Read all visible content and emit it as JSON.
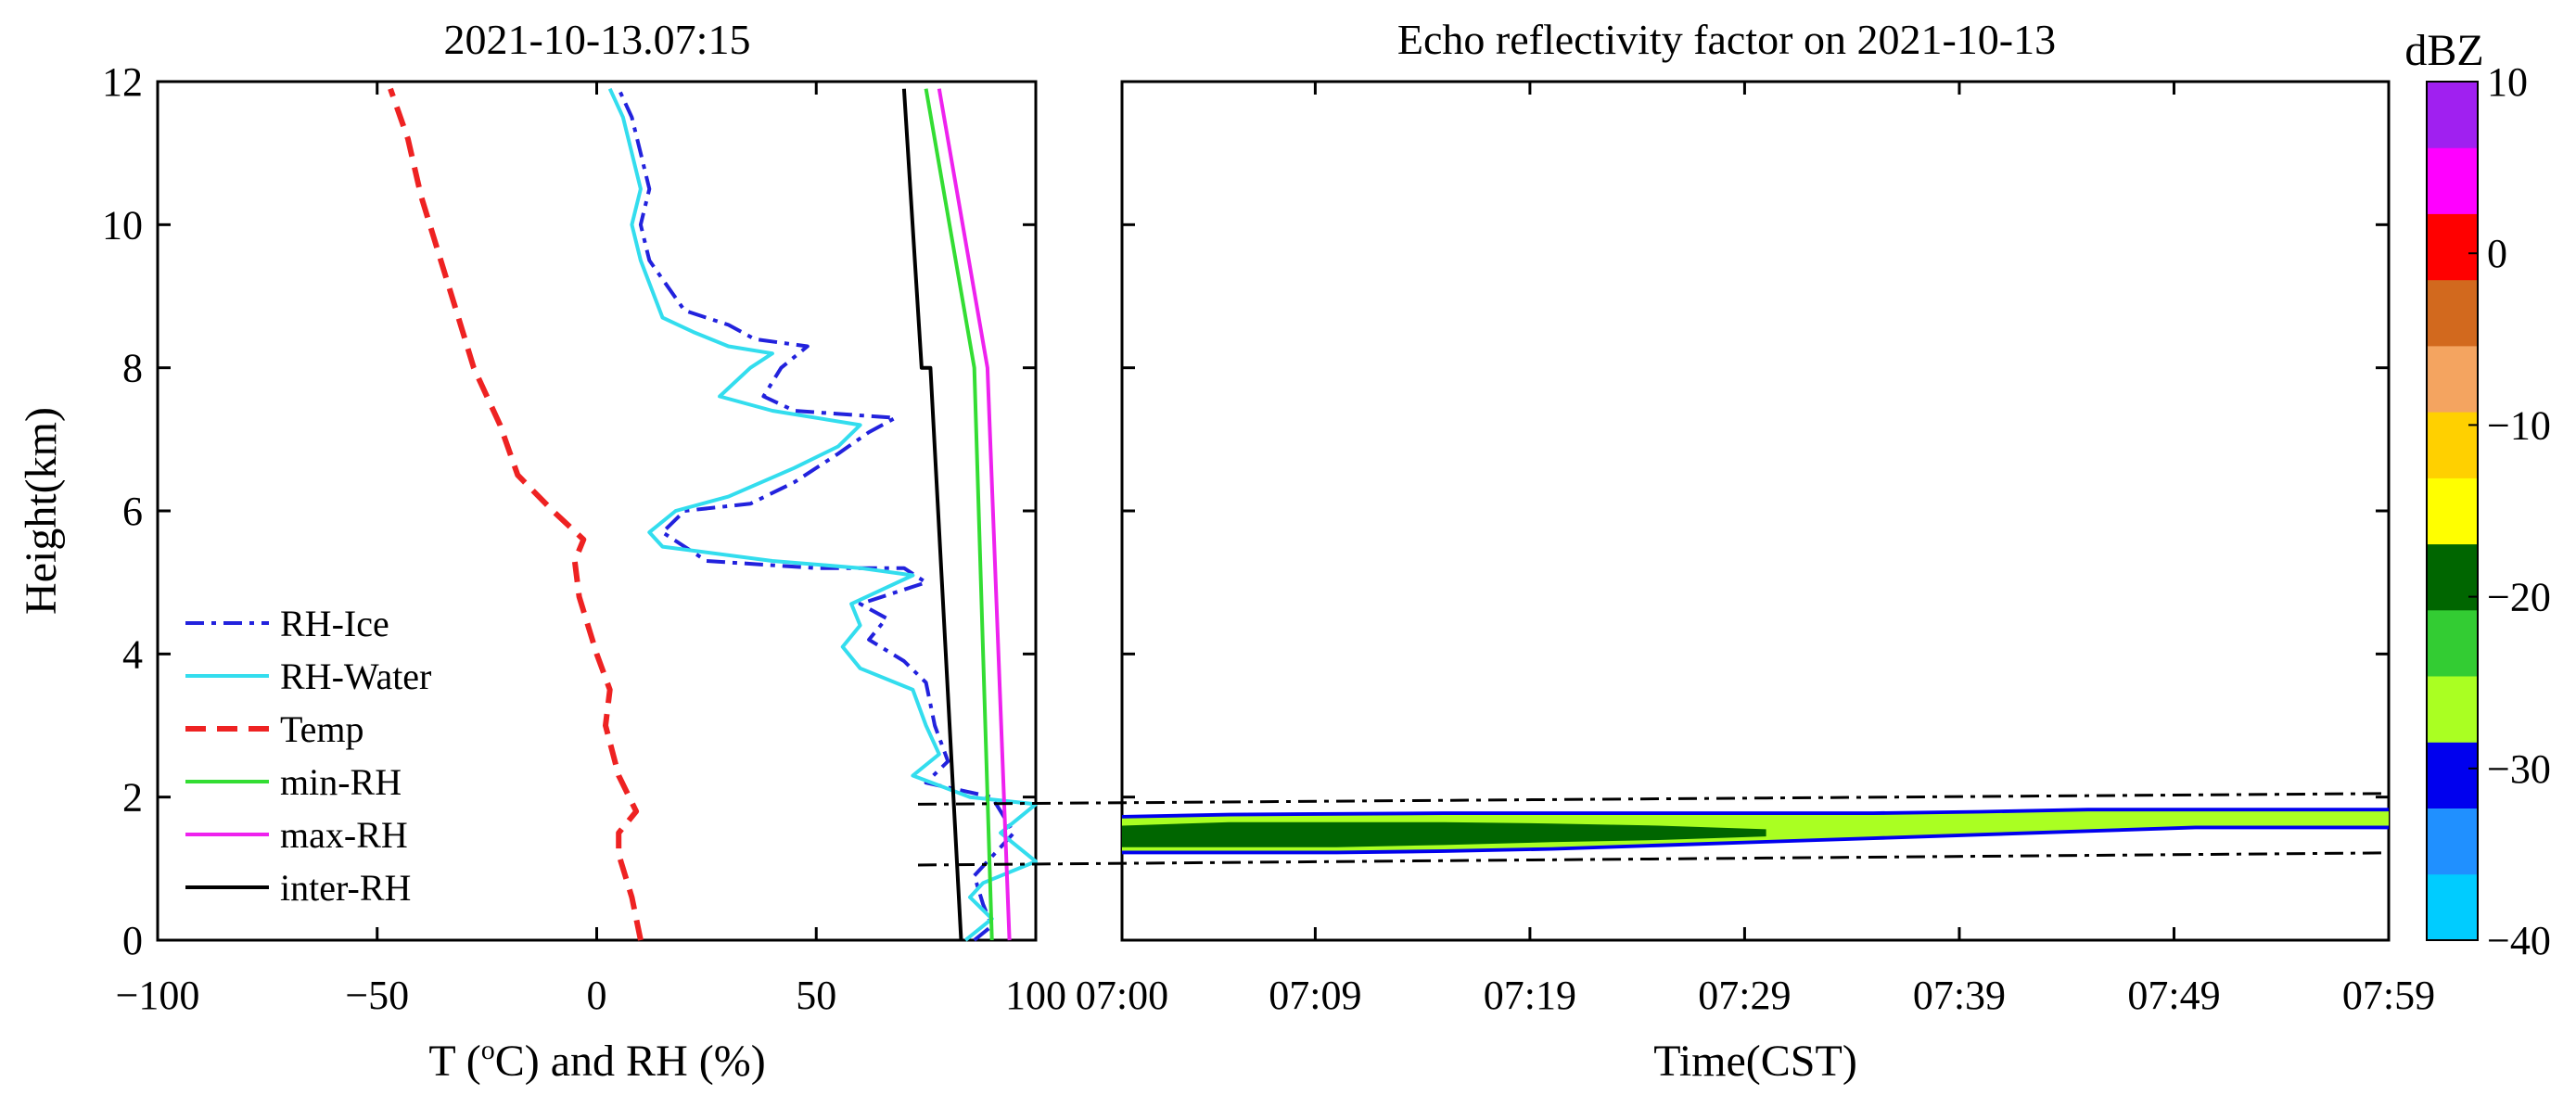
{
  "chart_data": [
    {
      "type": "line",
      "title": "2021-10-13.07:15",
      "xlabel_main": "T (",
      "xlabel_sup": "o",
      "xlabel_rest": "C) and RH (%)",
      "ylabel": "Height(km)",
      "xlim": [
        -100,
        100
      ],
      "ylim": [
        0,
        12
      ],
      "xticks": [
        "−100",
        "−50",
        "0",
        "50",
        "100"
      ],
      "xtick_values": [
        -100,
        -50,
        0,
        50,
        100
      ],
      "yticks": [
        "0",
        "2",
        "4",
        "6",
        "8",
        "10",
        "12"
      ],
      "ytick_values": [
        0,
        2,
        4,
        6,
        8,
        10,
        12
      ],
      "legend_position": "bottom-left",
      "series": [
        {
          "name": "RH-Ice",
          "color": "#2222dd",
          "dash": "dashdot",
          "points": [
            [
              86,
              0
            ],
            [
              90,
              0.2
            ],
            [
              88,
              0.5
            ],
            [
              86,
              0.9
            ],
            [
              95,
              1.5
            ],
            [
              90,
              2
            ],
            [
              75,
              2.2
            ],
            [
              80,
              2.5
            ],
            [
              77,
              3
            ],
            [
              75,
              3.6
            ],
            [
              70,
              3.9
            ],
            [
              62,
              4.2
            ],
            [
              66,
              4.5
            ],
            [
              60,
              4.7
            ],
            [
              75,
              5
            ],
            [
              70,
              5.2
            ],
            [
              50,
              5.2
            ],
            [
              25,
              5.3
            ],
            [
              20,
              5.5
            ],
            [
              15,
              5.7
            ],
            [
              20,
              6
            ],
            [
              35,
              6.1
            ],
            [
              45,
              6.4
            ],
            [
              55,
              6.8
            ],
            [
              62,
              7.1
            ],
            [
              68,
              7.3
            ],
            [
              45,
              7.4
            ],
            [
              38,
              7.6
            ],
            [
              42,
              8
            ],
            [
              48,
              8.3
            ],
            [
              36,
              8.4
            ],
            [
              30,
              8.6
            ],
            [
              20,
              8.8
            ],
            [
              12,
              9.5
            ],
            [
              10,
              10
            ],
            [
              12,
              10.5
            ],
            [
              10,
              11
            ],
            [
              8,
              11.5
            ],
            [
              5,
              11.9
            ]
          ]
        },
        {
          "name": "RH-Water",
          "color": "#33ddee",
          "dash": "solid",
          "points": [
            [
              84,
              0
            ],
            [
              90,
              0.3
            ],
            [
              85,
              0.6
            ],
            [
              88,
              0.8
            ],
            [
              100,
              1.1
            ],
            [
              92,
              1.5
            ],
            [
              100,
              1.9
            ],
            [
              85,
              2
            ],
            [
              72,
              2.3
            ],
            [
              78,
              2.6
            ],
            [
              75,
              3
            ],
            [
              72,
              3.5
            ],
            [
              60,
              3.8
            ],
            [
              56,
              4.1
            ],
            [
              60,
              4.4
            ],
            [
              58,
              4.7
            ],
            [
              72,
              5.1
            ],
            [
              60,
              5.2
            ],
            [
              40,
              5.3
            ],
            [
              15,
              5.5
            ],
            [
              12,
              5.7
            ],
            [
              18,
              6
            ],
            [
              30,
              6.2
            ],
            [
              45,
              6.6
            ],
            [
              55,
              6.9
            ],
            [
              60,
              7.2
            ],
            [
              40,
              7.4
            ],
            [
              28,
              7.6
            ],
            [
              35,
              8
            ],
            [
              40,
              8.2
            ],
            [
              30,
              8.3
            ],
            [
              22,
              8.5
            ],
            [
              15,
              8.7
            ],
            [
              10,
              9.5
            ],
            [
              8,
              10
            ],
            [
              10,
              10.5
            ],
            [
              8,
              11
            ],
            [
              6,
              11.5
            ],
            [
              3,
              11.9
            ]
          ]
        },
        {
          "name": "Temp",
          "color": "#ee2222",
          "dash": "dashed",
          "points": [
            [
              10,
              0
            ],
            [
              8,
              0.6
            ],
            [
              5,
              1.2
            ],
            [
              5,
              1.5
            ],
            [
              9,
              1.8
            ],
            [
              5,
              2.3
            ],
            [
              2,
              3
            ],
            [
              3,
              3.5
            ],
            [
              0,
              4
            ],
            [
              -4,
              4.8
            ],
            [
              -5,
              5.3
            ],
            [
              -3,
              5.6
            ],
            [
              -10,
              6
            ],
            [
              -18,
              6.5
            ],
            [
              -22,
              7.2
            ],
            [
              -28,
              8
            ],
            [
              -32,
              8.8
            ],
            [
              -36,
              9.6
            ],
            [
              -40,
              10.4
            ],
            [
              -43,
              11.2
            ],
            [
              -47,
              11.9
            ]
          ]
        },
        {
          "name": "min-RH",
          "color": "#33dd33",
          "dash": "solid",
          "points": [
            [
              90,
              0
            ],
            [
              86,
              8
            ],
            [
              75,
              11.9
            ]
          ]
        },
        {
          "name": "max-RH",
          "color": "#ee22ee",
          "dash": "solid",
          "points": [
            [
              94,
              0
            ],
            [
              89,
              8
            ],
            [
              78,
              11.9
            ]
          ]
        },
        {
          "name": "inter-RH",
          "color": "#000000",
          "dash": "solid",
          "points": [
            [
              83,
              0
            ],
            [
              76,
              8
            ],
            [
              74,
              8
            ],
            [
              70,
              11.9
            ]
          ]
        }
      ]
    },
    {
      "type": "heatmap",
      "title": "Echo reflectivity factor on 2021-10-13",
      "xlabel": "Time(CST)",
      "ylim": [
        0,
        12
      ],
      "xticks": [
        "07:00",
        "07:09",
        "07:19",
        "07:29",
        "07:39",
        "07:49",
        "07:59"
      ],
      "xtick_minutes": [
        0,
        9,
        19,
        29,
        39,
        49,
        59
      ],
      "xlim_minutes": [
        0,
        59
      ],
      "colorbar": {
        "label": "dBZ",
        "range": [
          -40,
          10
        ],
        "ticks": [
          "10",
          "0",
          "−10",
          "−20",
          "−30",
          "−40"
        ],
        "tick_values": [
          10,
          0,
          -10,
          -20,
          -30,
          -40
        ],
        "colors": [
          "#00ccff",
          "#2090ff",
          "#0000ee",
          "#aaff22",
          "#33cc33",
          "#006600",
          "#ffff00",
          "#ffd000",
          "#f4a460",
          "#d2691e",
          "#ff0000",
          "#ff00ff",
          "#a020f0"
        ]
      },
      "cloud_layer": {
        "t": [
          0,
          5,
          10,
          15,
          20,
          25,
          30,
          35,
          40,
          45,
          50,
          55,
          59
        ],
        "top_km": [
          1.75,
          1.78,
          1.79,
          1.8,
          1.8,
          1.8,
          1.8,
          1.8,
          1.82,
          1.85,
          1.85,
          1.85,
          1.85
        ],
        "base_km": [
          1.2,
          1.2,
          1.2,
          1.22,
          1.25,
          1.3,
          1.35,
          1.4,
          1.45,
          1.5,
          1.55,
          1.55,
          1.55
        ],
        "core_top_km": [
          1.6,
          1.65,
          1.65,
          1.65,
          1.63,
          1.6,
          1.55
        ],
        "core_base_km": [
          1.3,
          1.3,
          1.3,
          1.33,
          1.37,
          1.4,
          1.45
        ],
        "core_t": [
          0,
          5,
          10,
          15,
          20,
          25,
          30
        ]
      },
      "reference_lines_km": [
        {
          "left": 1.9,
          "right": 2.05
        },
        {
          "left": 1.05,
          "right": 1.22
        }
      ]
    }
  ]
}
